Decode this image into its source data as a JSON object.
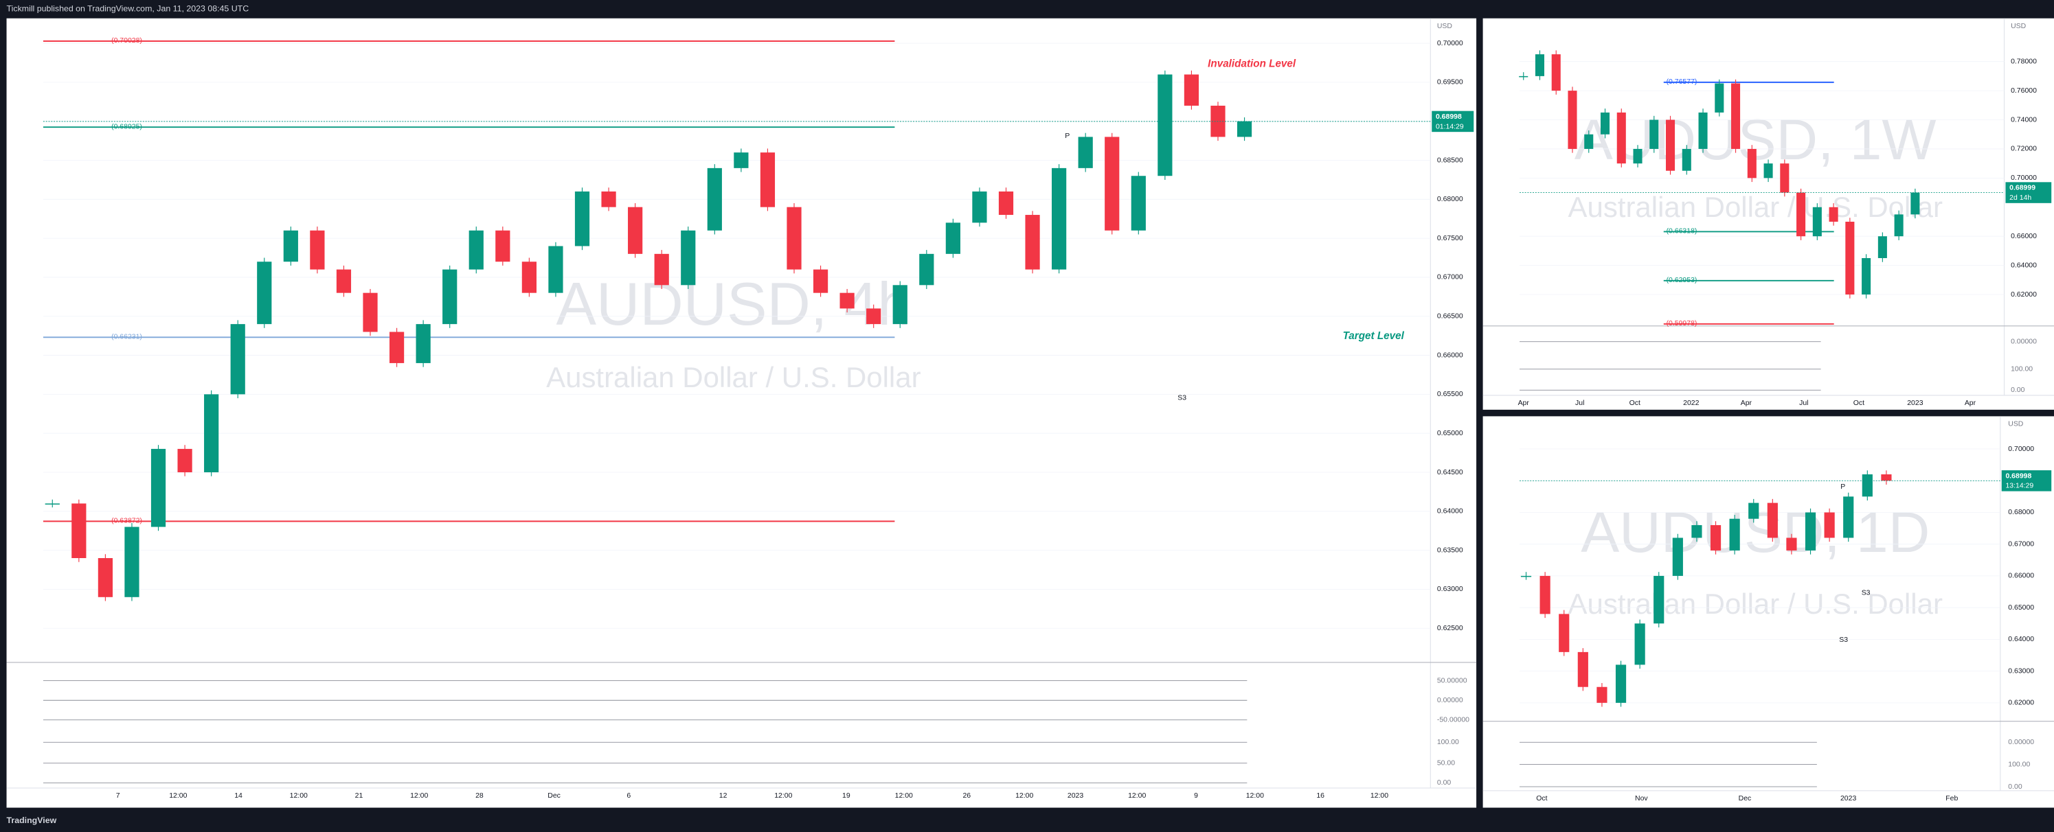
{
  "header": {
    "title": "Tickmill published on TradingView.com, Jan 11, 2023 08:45 UTC"
  },
  "footer": {
    "brand": "TradingView"
  },
  "panels": [
    {
      "symbol": "AUDUSD, 4h",
      "subtitle": "Australian Dollar / U.S. Dollar",
      "currency": "USD",
      "ylim": [
        0.6208,
        0.7032
      ],
      "yticks": [
        {
          "value": 0.7,
          "label": "0.70000"
        },
        {
          "value": 0.695,
          "label": "0.69500"
        },
        {
          "value": 0.69,
          "label": "0.69000"
        },
        {
          "value": 0.685,
          "label": "0.68500"
        },
        {
          "value": 0.68,
          "label": "0.68000"
        },
        {
          "value": 0.675,
          "label": "0.67500"
        },
        {
          "value": 0.67,
          "label": "0.67000"
        },
        {
          "value": 0.665,
          "label": "0.66500"
        },
        {
          "value": 0.66,
          "label": "0.66000"
        },
        {
          "value": 0.655,
          "label": "0.65500"
        },
        {
          "value": 0.65,
          "label": "0.65000"
        },
        {
          "value": 0.645,
          "label": "0.64500"
        },
        {
          "value": 0.64,
          "label": "0.64000"
        },
        {
          "value": 0.635,
          "label": "0.63500"
        },
        {
          "value": 0.63,
          "label": "0.63000"
        },
        {
          "value": 0.625,
          "label": "0.62500"
        }
      ],
      "time_labels": [
        "7",
        "12:00",
        "14",
        "12:00",
        "21",
        "12:00",
        "28",
        "Dec",
        "6",
        "12",
        "12:00",
        "19",
        "12:00",
        "26",
        "12:00",
        "2023",
        "12:00",
        "9",
        "12:00",
        "16",
        "12:00"
      ],
      "oscillator_labels": [
        "50.00000",
        "0.00000",
        "-50.00000",
        "100.00",
        "50.00",
        "0.00"
      ],
      "levels": [
        {
          "value": 0.70028,
          "label": "(0.70028)",
          "color": "#f23645"
        },
        {
          "value": 0.68925,
          "label": "(0.68925)",
          "color": "#089981"
        },
        {
          "value": 0.66231,
          "label": "(0.66231)",
          "color": "#7fa7d9"
        },
        {
          "value": 0.63872,
          "label": "(0.63872)",
          "color": "#f23645"
        }
      ],
      "annotations": [
        "Invalidation Level",
        "Target Level",
        "P",
        "S3"
      ],
      "price_tag": {
        "price": {
          "value": 0.68998,
          "label": "0.68998"
        },
        "countdown": "01:14:29"
      },
      "closes": [
        0.641,
        0.634,
        0.629,
        0.638,
        0.648,
        0.645,
        0.655,
        0.664,
        0.672,
        0.676,
        0.671,
        0.668,
        0.663,
        0.659,
        0.664,
        0.671,
        0.676,
        0.672,
        0.668,
        0.674,
        0.681,
        0.679,
        0.673,
        0.669,
        0.676,
        0.684,
        0.686,
        0.679,
        0.671,
        0.668,
        0.666,
        0.664,
        0.669,
        0.673,
        0.677,
        0.681,
        0.678,
        0.671,
        0.684,
        0.688,
        0.676,
        0.683,
        0.696,
        0.692,
        0.688,
        0.69
      ]
    },
    {
      "symbol": "AUDUSD, 1W",
      "subtitle": "Australian Dollar / U.S. Dollar",
      "currency": "USD",
      "ylim": [
        0.5993,
        0.8097
      ],
      "yticks": [
        {
          "value": 0.78,
          "label": "0.78000"
        },
        {
          "value": 0.76,
          "label": "0.76000"
        },
        {
          "value": 0.74,
          "label": "0.74000"
        },
        {
          "value": 0.72,
          "label": "0.72000"
        },
        {
          "value": 0.7,
          "label": "0.70000"
        },
        {
          "value": 0.66,
          "label": "0.66000"
        },
        {
          "value": 0.64,
          "label": "0.64000"
        },
        {
          "value": 0.62,
          "label": "0.62000"
        }
      ],
      "time_labels": [
        "Apr",
        "Jul",
        "Oct",
        "2022",
        "Apr",
        "Jul",
        "Oct",
        "2023",
        "Apr"
      ],
      "oscillator_labels": [
        "0.00000",
        "100.00",
        "0.00"
      ],
      "levels": [
        {
          "value": 0.76577,
          "label": "(0.76577)",
          "color": "#2962ff"
        },
        {
          "value": 0.66318,
          "label": "(0.66318)",
          "color": "#089981"
        },
        {
          "value": 0.62953,
          "label": "(0.62953)",
          "color": "#089981"
        },
        {
          "value": 0.59978,
          "label": "(0.59978)",
          "color": "#f23645"
        }
      ],
      "annotations": [],
      "price_tag": {
        "price": {
          "value": 0.68999,
          "label": "0.68999"
        },
        "countdown": "2d 14h"
      },
      "closes": [
        0.77,
        0.785,
        0.76,
        0.72,
        0.73,
        0.745,
        0.71,
        0.72,
        0.74,
        0.705,
        0.72,
        0.745,
        0.765,
        0.72,
        0.7,
        0.71,
        0.69,
        0.66,
        0.68,
        0.67,
        0.62,
        0.645,
        0.66,
        0.675,
        0.69
      ]
    },
    {
      "symbol": "AUDUSD, 1D",
      "subtitle": "Australian Dollar / U.S. Dollar",
      "currency": "USD",
      "ylim": [
        0.6146,
        0.7103
      ],
      "yticks": [
        {
          "value": 0.7,
          "label": "0.70000"
        },
        {
          "value": 0.69,
          "label": "0.69000"
        },
        {
          "value": 0.68,
          "label": "0.68000"
        },
        {
          "value": 0.67,
          "label": "0.67000"
        },
        {
          "value": 0.66,
          "label": "0.66000"
        },
        {
          "value": 0.65,
          "label": "0.65000"
        },
        {
          "value": 0.64,
          "label": "0.64000"
        },
        {
          "value": 0.63,
          "label": "0.63000"
        },
        {
          "value": 0.62,
          "label": "0.62000"
        }
      ],
      "time_labels": [
        "Oct",
        "Nov",
        "Dec",
        "2023",
        "Feb"
      ],
      "oscillator_labels": [
        "0.00000",
        "100.00",
        "0.00"
      ],
      "levels": [],
      "annotations": [
        "P",
        "S3",
        "S3"
      ],
      "price_tag": {
        "price": {
          "value": 0.68998,
          "label": "0.68998"
        },
        "countdown": "13:14:29"
      },
      "closes": [
        0.66,
        0.648,
        0.636,
        0.625,
        0.62,
        0.632,
        0.645,
        0.66,
        0.672,
        0.676,
        0.668,
        0.678,
        0.683,
        0.672,
        0.668,
        0.68,
        0.672,
        0.685,
        0.692,
        0.69
      ]
    }
  ]
}
